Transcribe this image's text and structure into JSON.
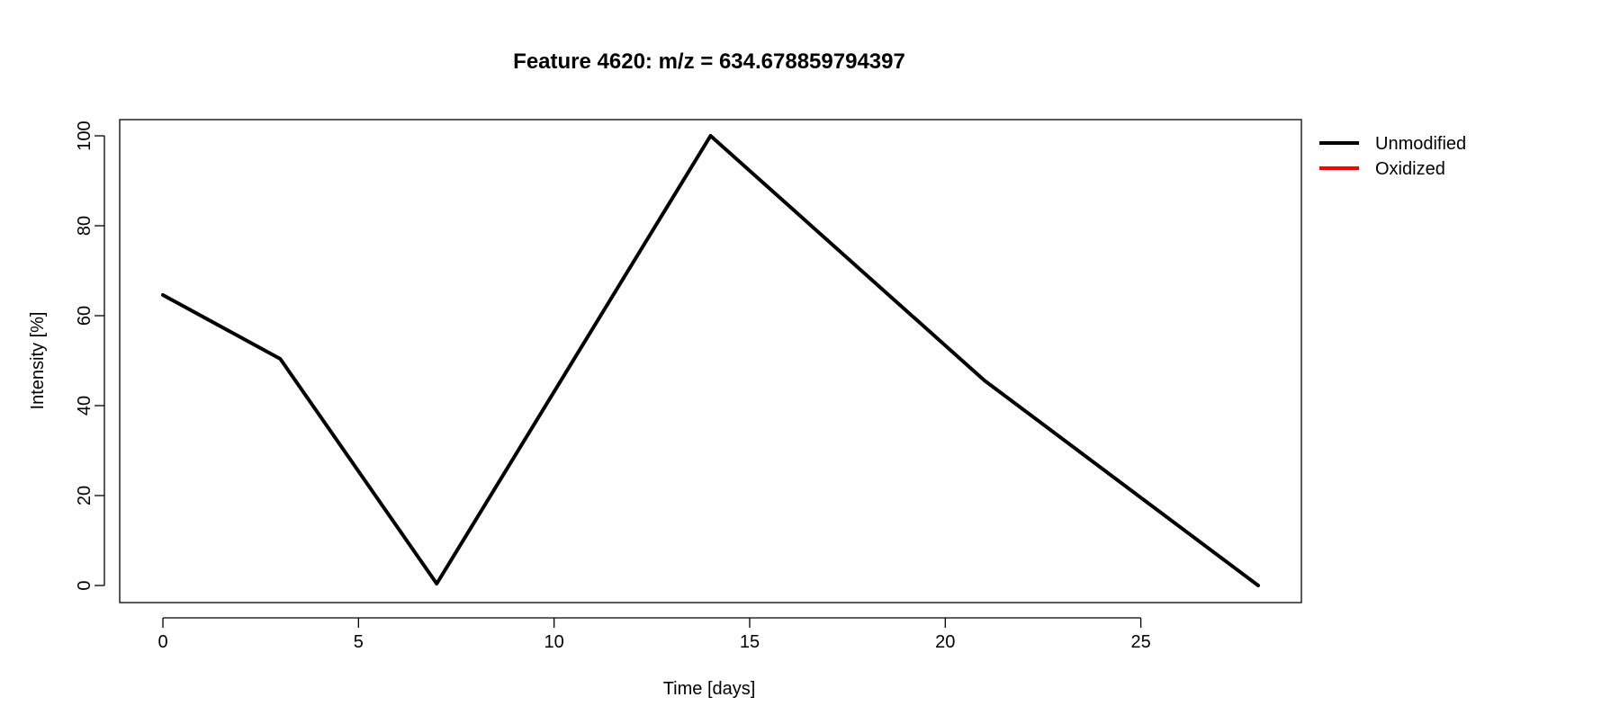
{
  "chart_data": {
    "type": "line",
    "title": "Feature 4620: m/z = 634.678859794397",
    "xlabel": "Time [days]",
    "ylabel": "Intensity [%]",
    "xlim": [
      -1.12,
      29.12
    ],
    "ylim": [
      -4,
      104
    ],
    "x_ticks": [
      0,
      5,
      10,
      15,
      20,
      25
    ],
    "y_ticks": [
      0,
      20,
      40,
      60,
      80,
      100
    ],
    "grid": false,
    "legend_position": "right, outside plot, top",
    "legend": [
      {
        "label": "Unmodified",
        "color": "#000000"
      },
      {
        "label": "Oxidized",
        "color": "#ff0000"
      }
    ],
    "series": [
      {
        "name": "Unmodified",
        "color": "#000000",
        "x": [
          0,
          3,
          7,
          14,
          21,
          28
        ],
        "y": [
          64.6,
          50.4,
          0.4,
          100,
          45.6,
          0
        ]
      },
      {
        "name": "Oxidized",
        "color": "#ff0000",
        "x": [],
        "y": []
      }
    ]
  }
}
